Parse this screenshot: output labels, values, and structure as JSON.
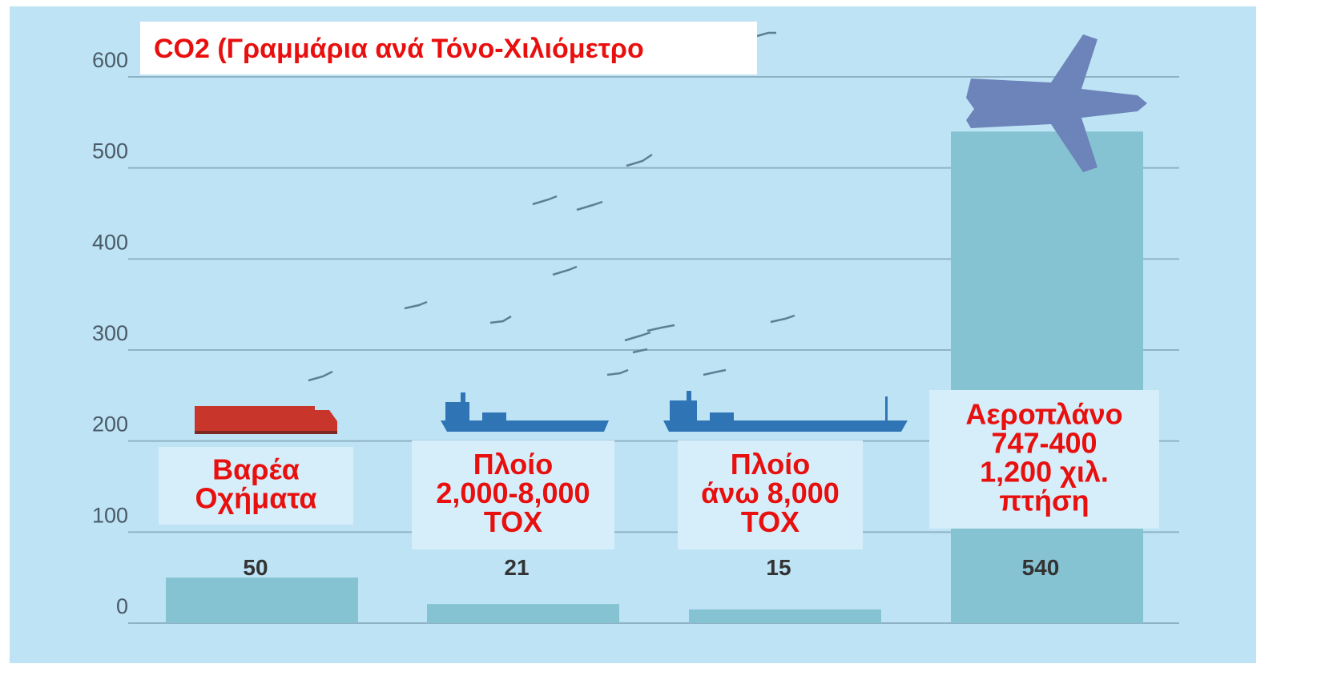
{
  "chart_data": {
    "type": "bar",
    "title": "CO2 (Γραμμάρια ανά Τόνο-Χιλιόμετρο",
    "categories": [
      [
        "Βαρέα",
        "Οχήματα"
      ],
      [
        "Πλοίο",
        "2,000-8,000",
        "ΤΟΧ"
      ],
      [
        "Πλοίο",
        "άνω 8,000",
        "ΤΟΧ"
      ],
      [
        "Αεροπλάνο",
        "747-400",
        "1,200 χιλ.",
        "πτήση"
      ]
    ],
    "values": [
      50,
      21,
      15,
      540
    ],
    "color": "#86c3d2",
    "ylim": [
      0,
      600
    ],
    "yticks": [
      0,
      100,
      200,
      300,
      400,
      500,
      600
    ],
    "grid": true
  }
}
